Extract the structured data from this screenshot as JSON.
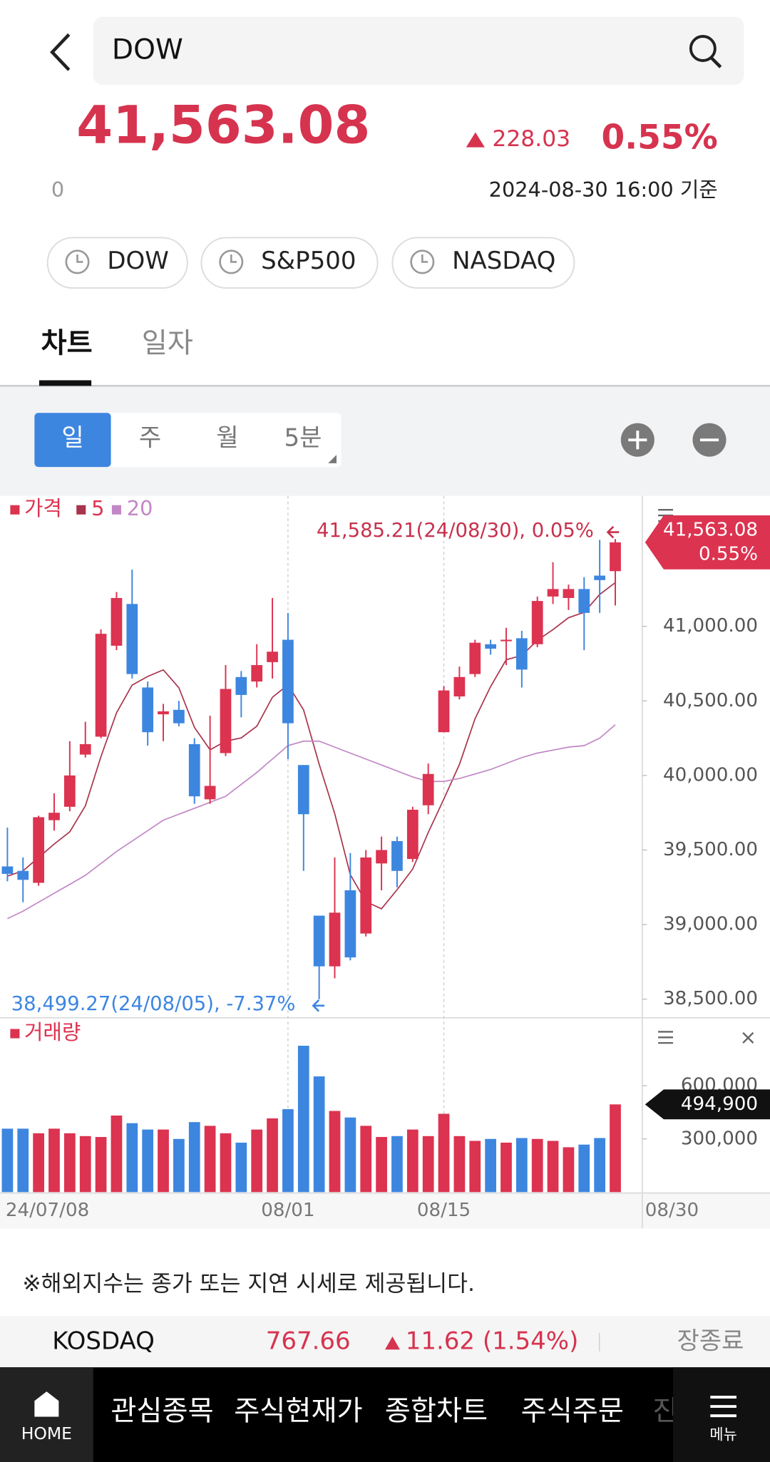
{
  "header": {
    "search": "DOW",
    "price": "41,563.08",
    "change": "228.03",
    "change_pct": "0.55%",
    "volume": "0",
    "timestamp": "2024-08-30 16:00 기준"
  },
  "index_chips": [
    "DOW",
    "S&P500",
    "NASDAQ"
  ],
  "tabs": [
    "차트",
    "일자"
  ],
  "periods": [
    "일",
    "주",
    "월",
    "5분"
  ],
  "chart_data": [
    {
      "type": "candlestick",
      "name": "가격",
      "up_color": "#dc3350",
      "down_color": "#3d86e0",
      "categories": [
        "24/07/08",
        null,
        null,
        null,
        null,
        null,
        null,
        null,
        null,
        null,
        null,
        null,
        null,
        null,
        null,
        null,
        null,
        null,
        "08/01",
        null,
        null,
        null,
        null,
        null,
        null,
        null,
        null,
        null,
        "08/15",
        null,
        null,
        null,
        null,
        null,
        null,
        null,
        null,
        null,
        null,
        "08/30"
      ],
      "open": [
        39390,
        39360,
        39280,
        39700,
        39790,
        40140,
        40260,
        40870,
        41150,
        40590,
        40410,
        40440,
        40210,
        39840,
        40150,
        40660,
        40630,
        40760,
        40910,
        40070,
        39060,
        38720,
        39230,
        38940,
        39410,
        39560,
        39440,
        39800,
        40290,
        40530,
        40680,
        40880,
        40900,
        40920,
        40880,
        41200,
        41190,
        41250,
        41340,
        41370
      ],
      "high": [
        39650,
        39450,
        39730,
        39880,
        40230,
        40360,
        40980,
        41230,
        41380,
        40630,
        40480,
        40500,
        40250,
        40400,
        40740,
        40700,
        40880,
        41190,
        41090,
        40070,
        39060,
        39450,
        39480,
        39500,
        39590,
        39590,
        39790,
        40080,
        40600,
        40730,
        40910,
        40910,
        40990,
        40970,
        41200,
        41430,
        41280,
        41330,
        41580,
        41585.21
      ],
      "low": [
        39290,
        39150,
        39260,
        39630,
        39760,
        40120,
        40250,
        40840,
        40650,
        40200,
        40230,
        40330,
        39810,
        39810,
        40130,
        40390,
        40590,
        40650,
        40110,
        39360,
        38499.27,
        38640,
        38760,
        38920,
        39230,
        39250,
        39420,
        39740,
        40290,
        40510,
        40660,
        40810,
        40740,
        40590,
        40860,
        41150,
        41110,
        40840,
        41090,
        41140
      ],
      "close": [
        39340,
        39300,
        39720,
        39750,
        40000,
        40210,
        40950,
        41190,
        40680,
        40290,
        40430,
        40350,
        39860,
        39930,
        40580,
        40540,
        40740,
        40830,
        40350,
        39740,
        38720,
        39080,
        38780,
        39450,
        39500,
        39360,
        39770,
        40010,
        40570,
        40660,
        40890,
        40850,
        40910,
        40710,
        41170,
        41250,
        41250,
        41090,
        41310,
        41563.08
      ],
      "series": [
        {
          "name": "5",
          "color": "#a8334c",
          "values": [
            39325,
            39360,
            39450,
            39540,
            39622,
            39796,
            40126,
            40420,
            40606,
            40664,
            40708,
            40588,
            40322,
            40172,
            40230,
            40252,
            40330,
            40524,
            40608,
            40440,
            40076,
            39744,
            39334,
            39154,
            39106,
            39234,
            39372,
            39618,
            39842,
            40074,
            40380,
            40596,
            40776,
            40804,
            40906,
            40978,
            41058,
            41094,
            41214,
            41293
          ]
        },
        {
          "name": "20",
          "color": "#c287c6",
          "values": [
            39040,
            39090,
            39150,
            39210,
            39270,
            39330,
            39410,
            39490,
            39560,
            39630,
            39700,
            39740,
            39780,
            39820,
            39860,
            39940,
            40020,
            40110,
            40200,
            40230,
            40230,
            40190,
            40150,
            40110,
            40070,
            40030,
            39990,
            39960,
            39960,
            39980,
            40010,
            40040,
            40080,
            40120,
            40150,
            40170,
            40190,
            40200,
            40250,
            40340
          ]
        }
      ],
      "ylim": [
        38387.5,
        41875
      ],
      "yticks": [
        {
          "value": 38500,
          "label": "38,500.00"
        },
        {
          "value": 39000,
          "label": "39,000.00"
        },
        {
          "value": 39500,
          "label": "39,500.00"
        },
        {
          "value": 40000,
          "label": "40,000.00"
        },
        {
          "value": 40500,
          "label": "40,500.00"
        },
        {
          "value": 41000,
          "label": "41,000.00"
        }
      ],
      "high_label": "41,585.21(24/08/30), 0.05%",
      "low_label": "38,499.27(24/08/05), -7.37%"
    },
    {
      "type": "bar",
      "name": "거래량",
      "values": [
        358000,
        358000,
        332000,
        358000,
        332000,
        316000,
        311000,
        432000,
        389000,
        353000,
        353000,
        300000,
        395000,
        374000,
        332000,
        279000,
        353000,
        416000,
        468000,
        826000,
        653000,
        458000,
        421000,
        374000,
        311000,
        316000,
        353000,
        316000,
        442000,
        316000,
        289000,
        300000,
        279000,
        305000,
        300000,
        289000,
        253000,
        268000,
        305000,
        494900
      ],
      "ylim": [
        0,
        968000
      ],
      "yticks": [
        {
          "value": 300000,
          "label": "300,000"
        },
        {
          "value": 600000,
          "label": "600,000"
        }
      ],
      "current_label": "494,900"
    }
  ],
  "notice": "※해외지수는 종가 또는 지연 시세로 제공됩니다.",
  "ticker": {
    "name": "KOSDAQ",
    "price": "767.66",
    "change": "11.62 (1.54%)",
    "status": "장종료"
  },
  "nav": [
    "HOME",
    "관심종목",
    "주식현재가",
    "종합차트",
    "주식주문",
    "진",
    "메뉴"
  ]
}
